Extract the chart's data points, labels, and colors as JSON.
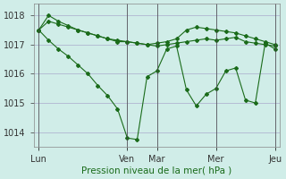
{
  "xlabel": "Pression niveau de la mer( hPa )",
  "ylabel": "",
  "bg_color": "#d0ede8",
  "grid_color": "#aaaacc",
  "line_color": "#1a6b1a",
  "ylim": [
    1013.5,
    1018.4
  ],
  "yticks": [
    1014,
    1015,
    1016,
    1017,
    1018
  ],
  "day_labels": [
    "Lun",
    "Ven",
    "Mar",
    "Mer",
    "Jeu"
  ],
  "day_positions": [
    0,
    9,
    12,
    18,
    24
  ],
  "series": [
    [
      1017.5,
      1017.8,
      1017.7,
      1017.6,
      1017.5,
      1017.4,
      1017.3,
      1017.2,
      1017.15,
      1017.1,
      1017.05,
      1017.0,
      1016.95,
      1017.0,
      1017.05,
      1017.1,
      1017.15,
      1017.2,
      1017.15,
      1017.2,
      1017.25,
      1017.1,
      1017.05,
      1017.0,
      1016.95
    ],
    [
      1017.5,
      1018.0,
      1017.8,
      1017.65,
      1017.5,
      1017.4,
      1017.3,
      1017.2,
      1017.1,
      1017.1,
      1017.05,
      1017.0,
      1017.05,
      1017.1,
      1017.2,
      1017.5,
      1017.6,
      1017.55,
      1017.5,
      1017.45,
      1017.4,
      1017.3,
      1017.2,
      1017.1,
      1017.0
    ],
    [
      1017.5,
      1017.15,
      1016.85,
      1016.6,
      1016.3,
      1016.0,
      1015.6,
      1015.25,
      1014.8,
      1013.8,
      1013.75,
      1015.9,
      1016.1,
      1016.85,
      1016.95,
      1015.45,
      1014.9,
      1015.3,
      1015.5,
      1016.1,
      1016.2,
      1015.1,
      1015.0,
      1017.05,
      1016.85
    ]
  ],
  "markers": [
    [
      0,
      1,
      2,
      3,
      4,
      5,
      6,
      7,
      8,
      9,
      10,
      11,
      12,
      13,
      14,
      15,
      16,
      17,
      18,
      19,
      20,
      21,
      22,
      23,
      24
    ],
    [
      0,
      1,
      2,
      3,
      4,
      5,
      6,
      7,
      8,
      9,
      10,
      11,
      12,
      13,
      14,
      15,
      16,
      17,
      18,
      19,
      20,
      21,
      22,
      23,
      24
    ],
    [
      0,
      1,
      2,
      3,
      4,
      5,
      6,
      7,
      8,
      9,
      10,
      11,
      12,
      13,
      14,
      15,
      16,
      17,
      18,
      19,
      20,
      21,
      22,
      23,
      24
    ]
  ]
}
